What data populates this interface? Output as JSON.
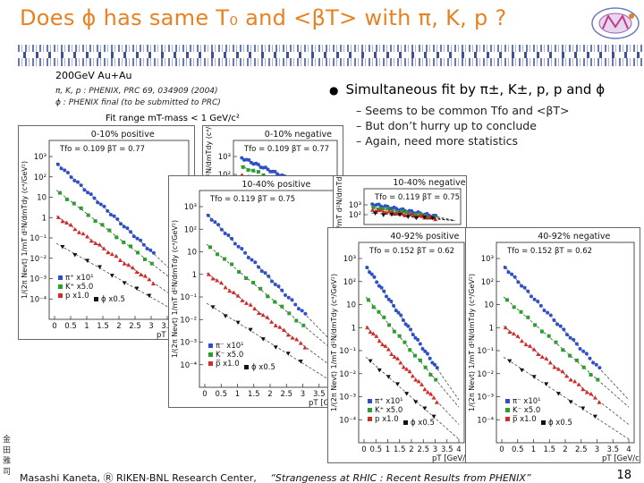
{
  "slide": {
    "title": "Does ϕ has same T₀ and <βT> with π, K, p ?",
    "title_parts": {
      "pre": "Does ",
      "phi": "ϕ",
      " mid1": " has same T",
      "fo": "fo",
      " mid2": " and <",
      "beta": "β",
      "T": "T",
      "mid3": "> with π, K, p ?"
    },
    "refs": {
      "system": "200GeV Au+Au",
      "ref1": "π, K, p : PHENIX, PRC 69, 034909 (2004)",
      "ref2": "ϕ : PHENIX final (to be submitted to PRC)"
    },
    "fit_range": "Fit range mT-mass < 1 GeV/c²",
    "bullet": "Simultaneous fit by π±, K±, p, p and ϕ",
    "subs": [
      "– Seems to be common Tfo and <βT>",
      "– But don’t hurry up to conclude",
      "– Again, need more statistics"
    ],
    "footer_author": "Masashi Kaneta, Ⓡ RIKEN-BNL Research Center,",
    "footer_talk": "“Strangeness at RHIC : Recent Results from PHENIX”",
    "page_number": "18",
    "kanji": [
      "金",
      "田",
      "雅",
      "司"
    ]
  },
  "panels": [
    {
      "id": "p1",
      "title": "0-10% positive",
      "params": "Tfo = 0.109   βT = 0.77"
    },
    {
      "id": "p2",
      "title": "0-10%  negative",
      "params": "Tfo = 0.109   βT = 0.77"
    },
    {
      "id": "p3",
      "title": "10-40% positive",
      "params": "Tfo = 0.119   βT = 0.75"
    },
    {
      "id": "p4",
      "title": "10-40% negative",
      "params": "Tfo = 0.119   βT = 0.75"
    },
    {
      "id": "p5",
      "title": "40-92% positive",
      "params": "Tfo = 0.152   βT = 0.62"
    },
    {
      "id": "p6",
      "title": "40-92% negative",
      "params": "Tfo = 0.152   βT = 0.62"
    }
  ],
  "axis": {
    "xlabel": "pT [GeV/c]",
    "ylabel": "1/(2π Nevt) 1/mT d²N/dmTdy (c⁴/GeV²)",
    "xticks": [
      "0",
      "0.5",
      "1",
      "1.5",
      "2",
      "2.5",
      "3",
      "3.5",
      "4"
    ],
    "yticks": [
      "10³",
      "10²",
      "10",
      "1",
      "10⁻¹",
      "10⁻²",
      "10⁻³",
      "10⁻⁴"
    ]
  },
  "legend_pos": [
    {
      "sym": "π⁺",
      "scale": "x10¹",
      "color": "#2f4fc8"
    },
    {
      "sym": "K⁺",
      "scale": "x5.0",
      "color": "#2aa02a"
    },
    {
      "sym": "p",
      "scale": "x1.0",
      "color": "#d42a2a"
    },
    {
      "sym": "ϕ",
      "scale": "x0.5",
      "color": "#111111"
    }
  ],
  "legend_neg": [
    {
      "sym": "π⁻",
      "scale": "x10¹",
      "color": "#2f4fc8"
    },
    {
      "sym": "K⁻",
      "scale": "x5.0",
      "color": "#2aa02a"
    },
    {
      "sym": "p̅",
      "scale": "x1.0",
      "color": "#d42a2a"
    },
    {
      "sym": "ϕ",
      "scale": "x0.5",
      "color": "#111111"
    }
  ],
  "colors": {
    "title": "#e8811f",
    "pion": "#2f4fc8",
    "kaon": "#2aa02a",
    "proton": "#d42a2a",
    "phi": "#111111"
  }
}
